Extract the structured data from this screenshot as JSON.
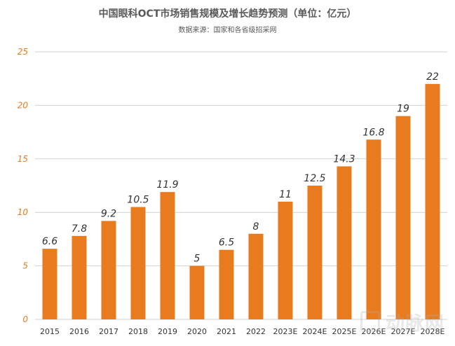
{
  "chart_data": {
    "type": "bar",
    "title": "中国眼科OCT市场销售规模及增长趋势预测（单位：亿元）",
    "subtitle": "数据来源：国家和各省级招采网",
    "categories": [
      "2015",
      "2016",
      "2017",
      "2018",
      "2019",
      "2020",
      "2021",
      "2022",
      "2023E",
      "2024E",
      "2025E",
      "2026E",
      "2027E",
      "2028E"
    ],
    "values": [
      6.6,
      7.8,
      9.2,
      10.5,
      11.9,
      5,
      6.5,
      8,
      11,
      12.5,
      14.3,
      16.8,
      19,
      22
    ],
    "value_labels": [
      "6.6",
      "7.8",
      "9.2",
      "10.5",
      "11.9",
      "5",
      "6.5",
      "8",
      "11",
      "12.5",
      "14.3",
      "16.8",
      "19",
      "22"
    ],
    "yticks": [
      0,
      5,
      10,
      15,
      20,
      25
    ],
    "ylim": [
      0,
      25
    ],
    "grid": true,
    "bar_color": "#e87b1e",
    "ytick_color": "#e87b1e",
    "xlabel": "",
    "ylabel": ""
  },
  "watermark": {
    "text": "动脉网",
    "icon": "logo-icon"
  }
}
